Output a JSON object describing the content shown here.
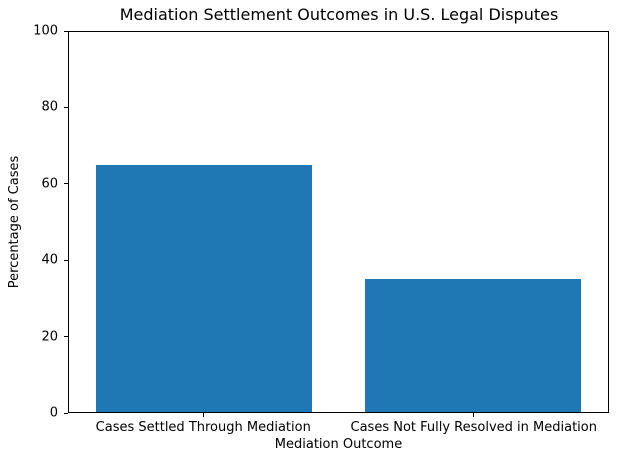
{
  "figure": {
    "background": "#ffffff",
    "frame_color": "#000000",
    "text_color": "#000000"
  },
  "chart_data": {
    "type": "bar",
    "title": "Mediation Settlement Outcomes in U.S. Legal Disputes",
    "xlabel": "Mediation Outcome",
    "ylabel": "Percentage of Cases",
    "categories": [
      "Cases Settled Through Mediation",
      "Cases Not Fully Resolved in Mediation"
    ],
    "values": [
      65,
      35
    ],
    "bar_color": "#1f77b4",
    "bar_width_fraction": 0.8,
    "ylim": [
      0,
      100
    ],
    "yticks": [
      0,
      20,
      40,
      60,
      80,
      100
    ],
    "grid": false,
    "legend_position": "none"
  }
}
